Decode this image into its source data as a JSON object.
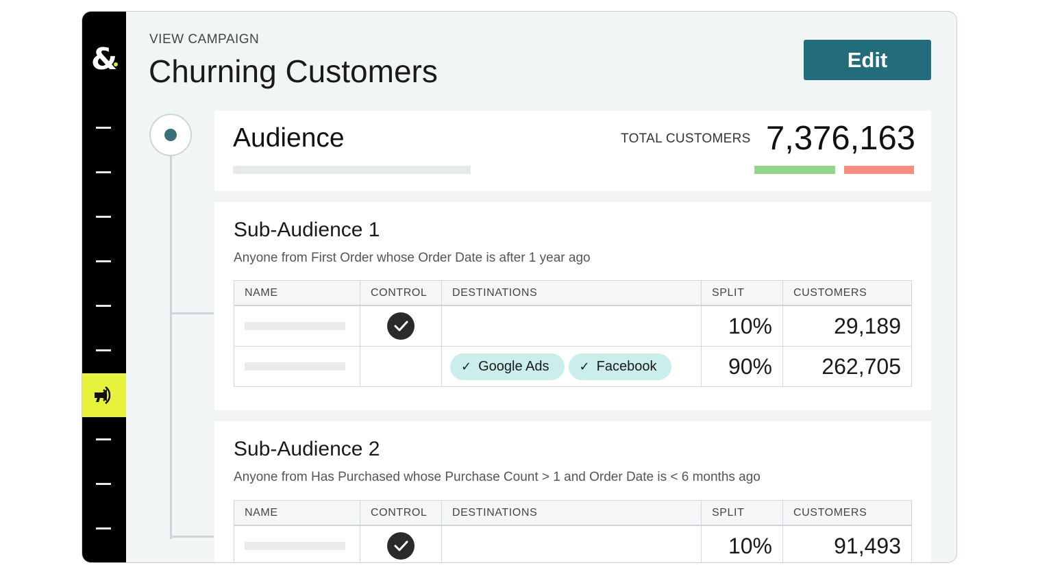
{
  "app": {
    "logo": "&"
  },
  "rail": {
    "item_count": 10,
    "active_index": 6,
    "active_icon": "megaphone-icon"
  },
  "header": {
    "eyebrow": "VIEW CAMPAIGN",
    "title": "Churning Customers",
    "edit_label": "Edit"
  },
  "audience": {
    "title": "Audience",
    "total_label": "TOTAL CUSTOMERS",
    "total_value": "7,376,163"
  },
  "table_headers": {
    "name": "NAME",
    "control": "CONTROL",
    "destinations": "DESTINATIONS",
    "split": "SPLIT",
    "customers": "CUSTOMERS"
  },
  "sub_audiences": [
    {
      "title": "Sub-Audience 1",
      "description": "Anyone from First Order whose Order Date is after 1 year ago",
      "rows": [
        {
          "control": true,
          "destinations": [],
          "split": "10%",
          "customers": "29,189"
        },
        {
          "control": false,
          "destinations": [
            "Google Ads",
            "Facebook"
          ],
          "split": "90%",
          "customers": "262,705"
        }
      ]
    },
    {
      "title": "Sub-Audience 2",
      "description": "Anyone from Has Purchased whose Purchase Count > 1 and Order Date is < 6 months ago",
      "rows": [
        {
          "control": true,
          "destinations": [],
          "split": "10%",
          "customers": "91,493"
        }
      ]
    }
  ],
  "icons": {
    "check": "check-icon",
    "destination_tick": "checkmark-icon"
  },
  "colors": {
    "accent": "#236c7c",
    "rail_bg": "#000000",
    "rail_active": "#e6f23c",
    "pill_bg": "#c9eeeb",
    "bar_green": "#93d68b",
    "bar_red": "#f58f80"
  }
}
